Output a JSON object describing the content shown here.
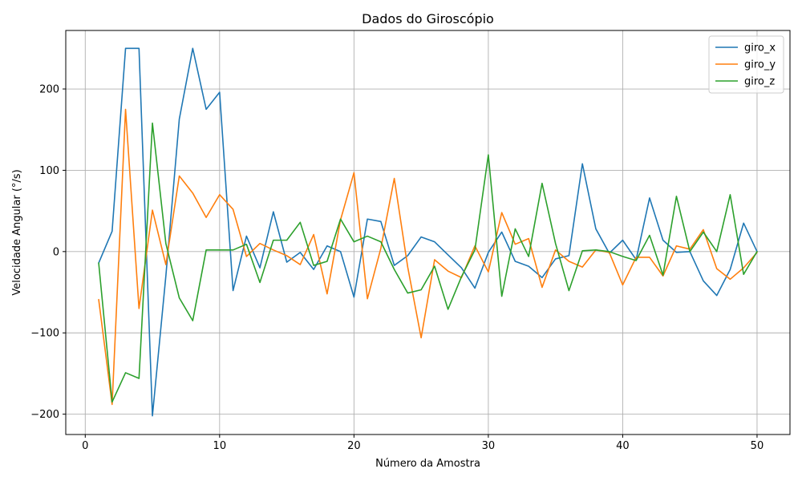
{
  "chart_data": {
    "type": "line",
    "title": "Dados do Giroscópio",
    "xlabel": "Número da Amostra",
    "ylabel": "Velocidade Angular (°/s)",
    "xlim": [
      -1.45,
      52.45
    ],
    "ylim": [
      -225,
      272
    ],
    "xticks": [
      0,
      10,
      20,
      30,
      40,
      50
    ],
    "yticks": [
      -200,
      -100,
      0,
      100,
      200
    ],
    "grid": true,
    "legend_position": "top-right",
    "x": [
      1,
      2,
      3,
      4,
      5,
      6,
      7,
      8,
      9,
      10,
      11,
      12,
      13,
      14,
      15,
      16,
      17,
      18,
      19,
      20,
      21,
      22,
      23,
      24,
      25,
      26,
      27,
      28,
      29,
      30,
      31,
      32,
      33,
      34,
      35,
      36,
      37,
      38,
      39,
      40,
      41,
      42,
      43,
      44,
      45,
      46,
      47,
      48,
      49,
      50
    ],
    "series": [
      {
        "name": "giro_x",
        "color": "#1f77b4",
        "values": [
          -14,
          25,
          250,
          250,
          -202,
          -30,
          163,
          250,
          175,
          196,
          -48,
          19,
          -20,
          49,
          -13,
          -1,
          -22,
          7,
          0,
          -56,
          40,
          37,
          -17,
          -5,
          18,
          12,
          -4,
          -20,
          -45,
          -1,
          24,
          -12,
          -18,
          -32,
          -9,
          -5,
          108,
          28,
          -2,
          14,
          -10,
          66,
          14,
          -1,
          0,
          -36,
          -54,
          -22,
          35,
          0
        ]
      },
      {
        "name": "giro_y",
        "color": "#ff7f0e",
        "values": [
          -59,
          -188,
          175,
          -70,
          51,
          -16,
          93,
          72,
          42,
          70,
          52,
          -6,
          10,
          2,
          -5,
          -16,
          21,
          -52,
          39,
          97,
          -58,
          4,
          90,
          -19,
          -106,
          -10,
          -24,
          -32,
          7,
          -25,
          48,
          9,
          16,
          -44,
          2,
          -12,
          -19,
          2,
          -1,
          -41,
          -7,
          -7,
          -30,
          7,
          3,
          27,
          -21,
          -34,
          -20,
          -1
        ]
      },
      {
        "name": "giro_z",
        "color": "#2ca02c",
        "values": [
          -14,
          -185,
          -149,
          -156,
          158,
          10,
          -57,
          -85,
          2,
          2,
          2,
          9,
          -38,
          14,
          14,
          36,
          -17,
          -12,
          40,
          12,
          19,
          12,
          -22,
          -51,
          -47,
          -18,
          -71,
          -31,
          2,
          119,
          -55,
          28,
          -6,
          84,
          10,
          -48,
          1,
          2,
          0,
          -6,
          -11,
          20,
          -29,
          68,
          0,
          24,
          0,
          70,
          -28,
          0
        ]
      }
    ]
  }
}
